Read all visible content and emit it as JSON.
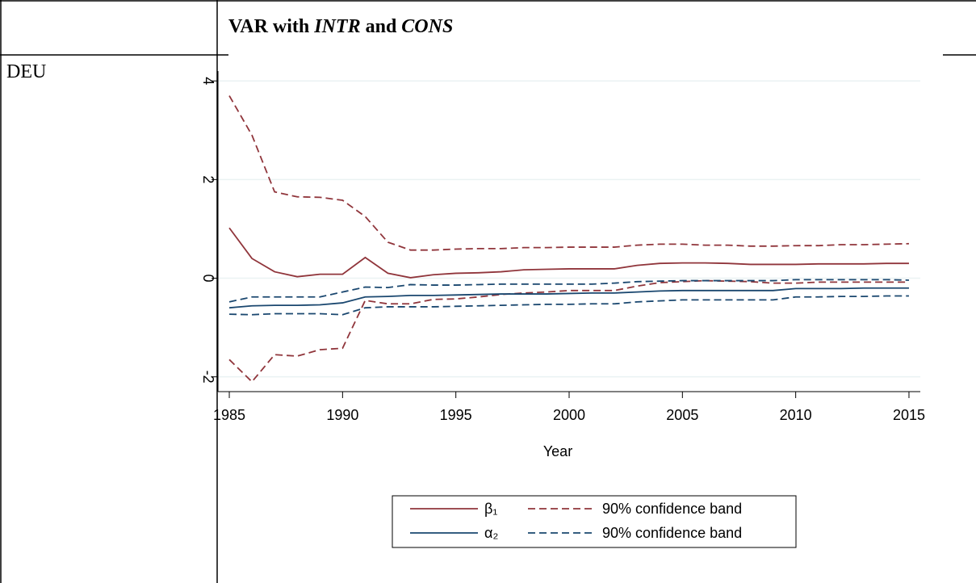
{
  "table": {
    "header": [
      "VAR with ",
      "INTR",
      " and ",
      "CONS"
    ],
    "row_label": "DEU"
  },
  "chart_data": {
    "type": "line",
    "xlabel": "Year",
    "x": [
      1985,
      1986,
      1987,
      1988,
      1989,
      1990,
      1991,
      1992,
      1993,
      1994,
      1995,
      1996,
      1997,
      1998,
      1999,
      2000,
      2001,
      2002,
      2003,
      2004,
      2005,
      2006,
      2007,
      2008,
      2009,
      2010,
      2011,
      2012,
      2013,
      2014,
      2015
    ],
    "xlim": [
      1984.5,
      2015.5
    ],
    "xticks": [
      1985,
      1990,
      1995,
      2000,
      2005,
      2010,
      2015
    ],
    "ylim": [
      -2.3,
      4.2
    ],
    "yticks": [
      -2,
      0,
      2,
      4
    ],
    "grid": true,
    "series": [
      {
        "name": "β₁",
        "color": "#90353b",
        "dash": false,
        "values": [
          1.02,
          0.4,
          0.13,
          0.03,
          0.08,
          0.08,
          0.42,
          0.1,
          0.01,
          0.07,
          0.1,
          0.11,
          0.13,
          0.17,
          0.18,
          0.19,
          0.19,
          0.19,
          0.26,
          0.3,
          0.31,
          0.31,
          0.3,
          0.28,
          0.28,
          0.28,
          0.29,
          0.29,
          0.29,
          0.3,
          0.3
        ]
      },
      {
        "name": "90% confidence band",
        "color": "#90353b",
        "dash": true,
        "upper": [
          3.7,
          2.9,
          1.75,
          1.65,
          1.64,
          1.58,
          1.25,
          0.73,
          0.57,
          0.57,
          0.59,
          0.6,
          0.6,
          0.62,
          0.62,
          0.63,
          0.63,
          0.63,
          0.67,
          0.69,
          0.69,
          0.67,
          0.67,
          0.65,
          0.65,
          0.66,
          0.66,
          0.68,
          0.68,
          0.69,
          0.7
        ],
        "lower": [
          -1.65,
          -2.1,
          -1.55,
          -1.58,
          -1.45,
          -1.42,
          -0.45,
          -0.52,
          -0.52,
          -0.43,
          -0.42,
          -0.38,
          -0.33,
          -0.3,
          -0.28,
          -0.25,
          -0.25,
          -0.25,
          -0.16,
          -0.09,
          -0.07,
          -0.05,
          -0.06,
          -0.07,
          -0.1,
          -0.1,
          -0.08,
          -0.08,
          -0.08,
          -0.08,
          -0.08
        ]
      },
      {
        "name": "α₂",
        "color": "#1a476f",
        "dash": false,
        "values": [
          -0.6,
          -0.56,
          -0.55,
          -0.55,
          -0.54,
          -0.5,
          -0.38,
          -0.37,
          -0.35,
          -0.35,
          -0.34,
          -0.33,
          -0.32,
          -0.32,
          -0.32,
          -0.31,
          -0.3,
          -0.3,
          -0.28,
          -0.26,
          -0.25,
          -0.25,
          -0.25,
          -0.25,
          -0.25,
          -0.21,
          -0.21,
          -0.21,
          -0.2,
          -0.2,
          -0.2
        ]
      },
      {
        "name": "90% confidence band",
        "color": "#1a476f",
        "dash": true,
        "upper": [
          -0.48,
          -0.38,
          -0.38,
          -0.38,
          -0.38,
          -0.28,
          -0.18,
          -0.19,
          -0.13,
          -0.14,
          -0.14,
          -0.13,
          -0.12,
          -0.12,
          -0.12,
          -0.12,
          -0.12,
          -0.1,
          -0.07,
          -0.06,
          -0.05,
          -0.05,
          -0.05,
          -0.05,
          -0.05,
          -0.03,
          -0.03,
          -0.03,
          -0.03,
          -0.03,
          -0.04
        ],
        "lower": [
          -0.73,
          -0.74,
          -0.72,
          -0.72,
          -0.72,
          -0.74,
          -0.6,
          -0.58,
          -0.58,
          -0.58,
          -0.57,
          -0.56,
          -0.55,
          -0.54,
          -0.53,
          -0.53,
          -0.52,
          -0.52,
          -0.48,
          -0.46,
          -0.44,
          -0.44,
          -0.44,
          -0.44,
          -0.44,
          -0.38,
          -0.38,
          -0.37,
          -0.37,
          -0.36,
          -0.36
        ]
      }
    ]
  }
}
